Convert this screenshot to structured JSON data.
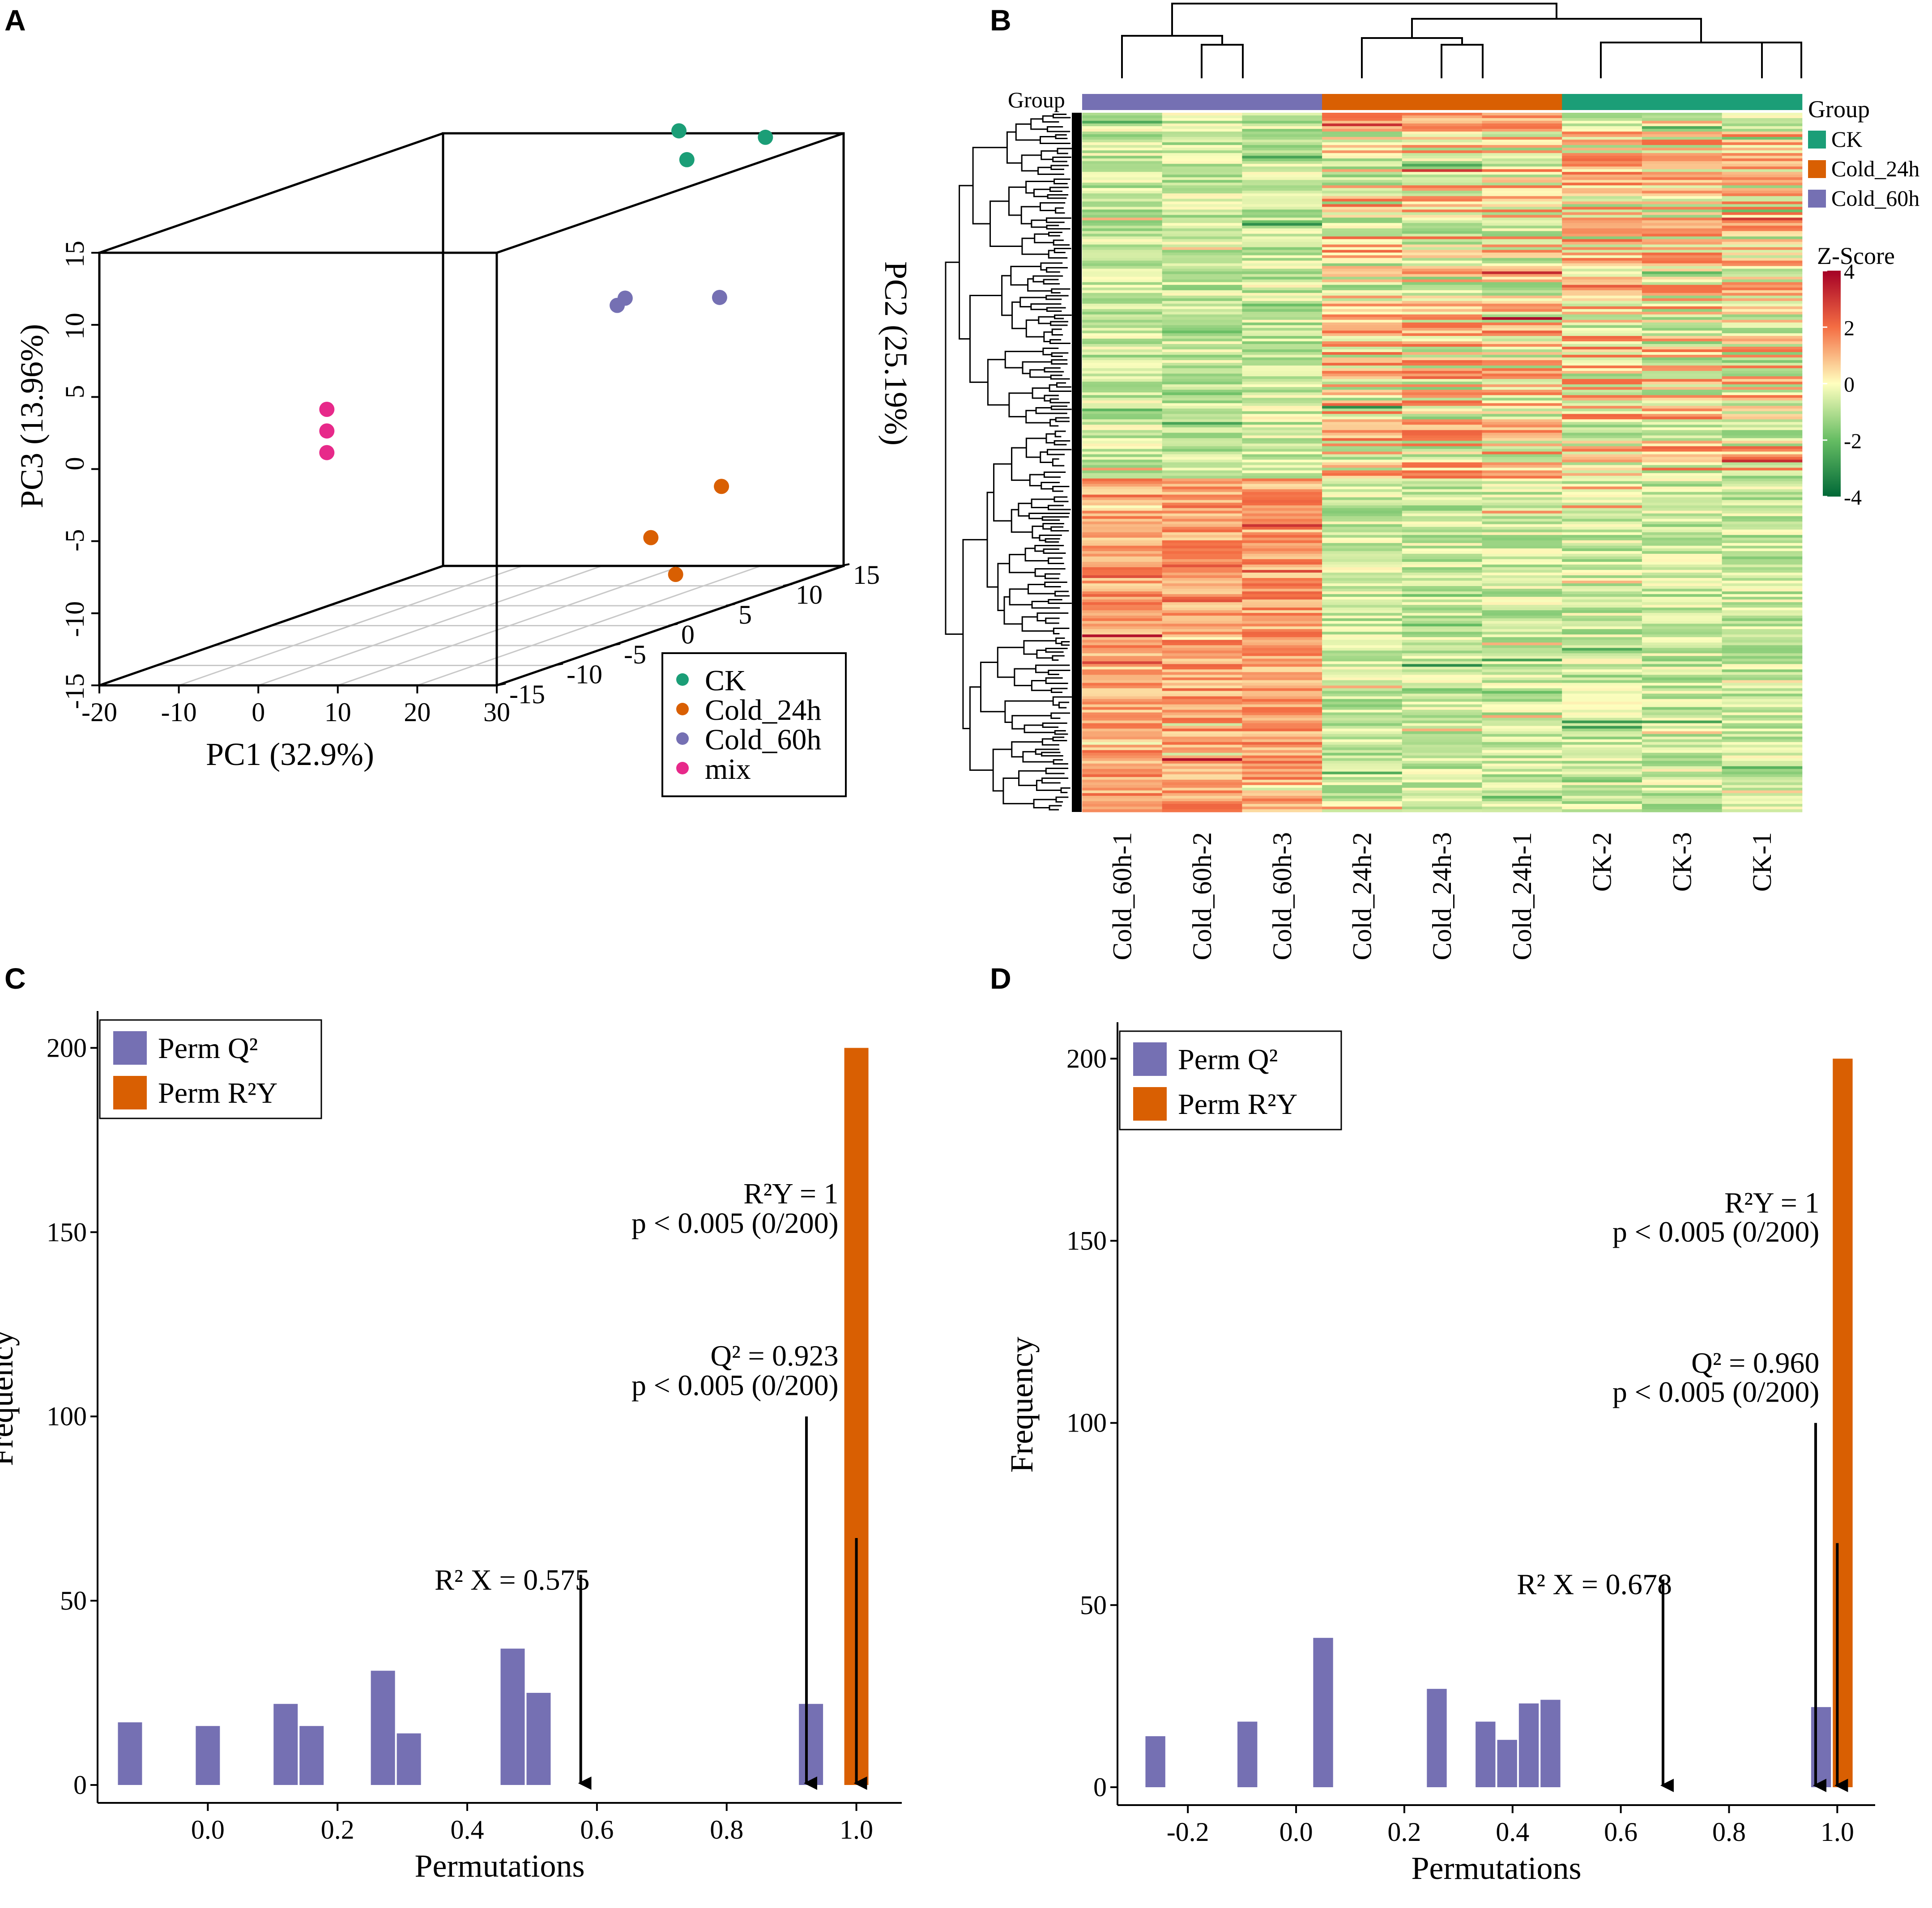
{
  "panels": {
    "A": {
      "letter": "A"
    },
    "B": {
      "letter": "B"
    },
    "C": {
      "letter": "C"
    },
    "D": {
      "letter": "D"
    }
  },
  "colors": {
    "CK": "#1b9e77",
    "Cold_24h": "#d95f02",
    "Cold_60h": "#7570b3",
    "mix": "#e7298a",
    "perm_q2": "#7570b3",
    "perm_r2y": "#d95f02"
  },
  "chart_data": [
    {
      "id": "A",
      "type": "scatter",
      "subtype": "3d-pca",
      "xlabel": "PC1 (32.9%)",
      "ylabel": "PC2 (25.19%)",
      "zlabel": "PC3 (13.96%)",
      "x_ticks": [
        "-20",
        "-10",
        "0",
        "10",
        "20",
        "30"
      ],
      "y_ticks": [
        "-15",
        "-10",
        "-5",
        "0",
        "5",
        "10",
        "15"
      ],
      "z_ticks": [
        "-15",
        "-10",
        "-5",
        "0",
        "5",
        "10",
        "15"
      ],
      "legend": [
        "CK",
        "Cold_24h",
        "Cold_60h",
        "mix"
      ],
      "series": [
        {
          "name": "CK",
          "points": [
            [
              14,
              12,
              16
            ],
            [
              15,
              12,
              14
            ],
            [
              22,
              14,
              15
            ]
          ]
        },
        {
          "name": "Cold_24h",
          "points": [
            [
              28,
              6,
              -7
            ],
            [
              22,
              4,
              -10
            ],
            [
              28,
              2,
              -12
            ]
          ]
        },
        {
          "name": "Cold_60h",
          "points": [
            [
              12,
              8,
              5
            ],
            [
              13,
              8,
              5.5
            ],
            [
              22,
              10,
              5
            ]
          ]
        },
        {
          "name": "mix",
          "points": [
            [
              -13,
              0,
              0
            ],
            [
              -13,
              0,
              -1.5
            ],
            [
              -13,
              0,
              -3
            ]
          ]
        }
      ]
    },
    {
      "id": "B",
      "type": "heatmap",
      "group_label": "Group",
      "legend_title": "Group",
      "groups": [
        "CK",
        "Cold_24h",
        "Cold_60h"
      ],
      "columns": [
        "Cold_60h-1",
        "Cold_60h-2",
        "Cold_60h-3",
        "Cold_24h-2",
        "Cold_24h-3",
        "Cold_24h-1",
        "CK-2",
        "CK-3",
        "CK-1"
      ],
      "column_groups": [
        "Cold_60h",
        "Cold_60h",
        "Cold_60h",
        "Cold_24h",
        "Cold_24h",
        "Cold_24h",
        "CK",
        "CK",
        "CK"
      ],
      "colorbar_title": "Z-Score",
      "colorbar_ticks": [
        "4",
        "2",
        "0",
        "-2",
        "-4"
      ],
      "zlim": [
        -4,
        4
      ]
    },
    {
      "id": "C",
      "type": "bar",
      "xlabel": "Permutations",
      "ylabel": "Frequency",
      "xlim": [
        -0.17,
        1.07
      ],
      "ylim": [
        0,
        210
      ],
      "x_ticks": [
        "0.0",
        "0.2",
        "0.4",
        "0.6",
        "0.8",
        "1.0"
      ],
      "y_ticks": [
        "0",
        "50",
        "100",
        "150",
        "200"
      ],
      "legend": [
        "Perm Q²",
        "Perm R²Y"
      ],
      "series": [
        {
          "name": "Perm Q²",
          "bin_width": 0.04,
          "x": [
            -0.12,
            -0.0,
            0.12,
            0.16,
            0.27,
            0.31,
            0.47,
            0.51,
            0.93
          ],
          "values": [
            17,
            16,
            22,
            16,
            31,
            14,
            37,
            25,
            22
          ]
        },
        {
          "name": "Perm R²Y",
          "bin_width": 0.04,
          "x": [
            1.0
          ],
          "values": [
            200
          ]
        }
      ],
      "annotations": {
        "r2y_line1": "R²Y = 1",
        "r2y_line2": "p < 0.005 (0/200)",
        "q2_line1": "Q² = 0.923",
        "q2_line2": "p < 0.005 (0/200)",
        "r2x": "R² X = 0.575"
      },
      "arrows": {
        "r2x": 0.575,
        "q2": 0.923,
        "r2y": 1.0
      }
    },
    {
      "id": "D",
      "type": "bar",
      "xlabel": "Permutations",
      "ylabel": "Frequency",
      "xlim": [
        -0.33,
        1.07
      ],
      "ylim": [
        0,
        210
      ],
      "x_ticks": [
        "-0.2",
        "0.0",
        "0.2",
        "0.4",
        "0.6",
        "0.8",
        "1.0"
      ],
      "y_ticks": [
        "0",
        "50",
        "100",
        "150",
        "200"
      ],
      "legend": [
        "Perm Q²",
        "Perm R²Y"
      ],
      "series": [
        {
          "name": "Perm Q²",
          "bin_width": 0.04,
          "x": [
            -0.26,
            -0.09,
            0.05,
            0.26,
            0.35,
            0.39,
            0.43,
            0.47,
            0.97
          ],
          "values": [
            14,
            18,
            41,
            27,
            18,
            13,
            23,
            24,
            22
          ]
        },
        {
          "name": "Perm R²Y",
          "bin_width": 0.04,
          "x": [
            1.01
          ],
          "values": [
            200
          ]
        }
      ],
      "annotations": {
        "r2y_line1": "R²Y = 1",
        "r2y_line2": "p < 0.005 (0/200)",
        "q2_line1": "Q² = 0.960",
        "q2_line2": "p < 0.005 (0/200)",
        "r2x": "R² X = 0.678"
      },
      "arrows": {
        "r2x": 0.678,
        "q2": 0.96,
        "r2y": 1.0
      }
    }
  ]
}
